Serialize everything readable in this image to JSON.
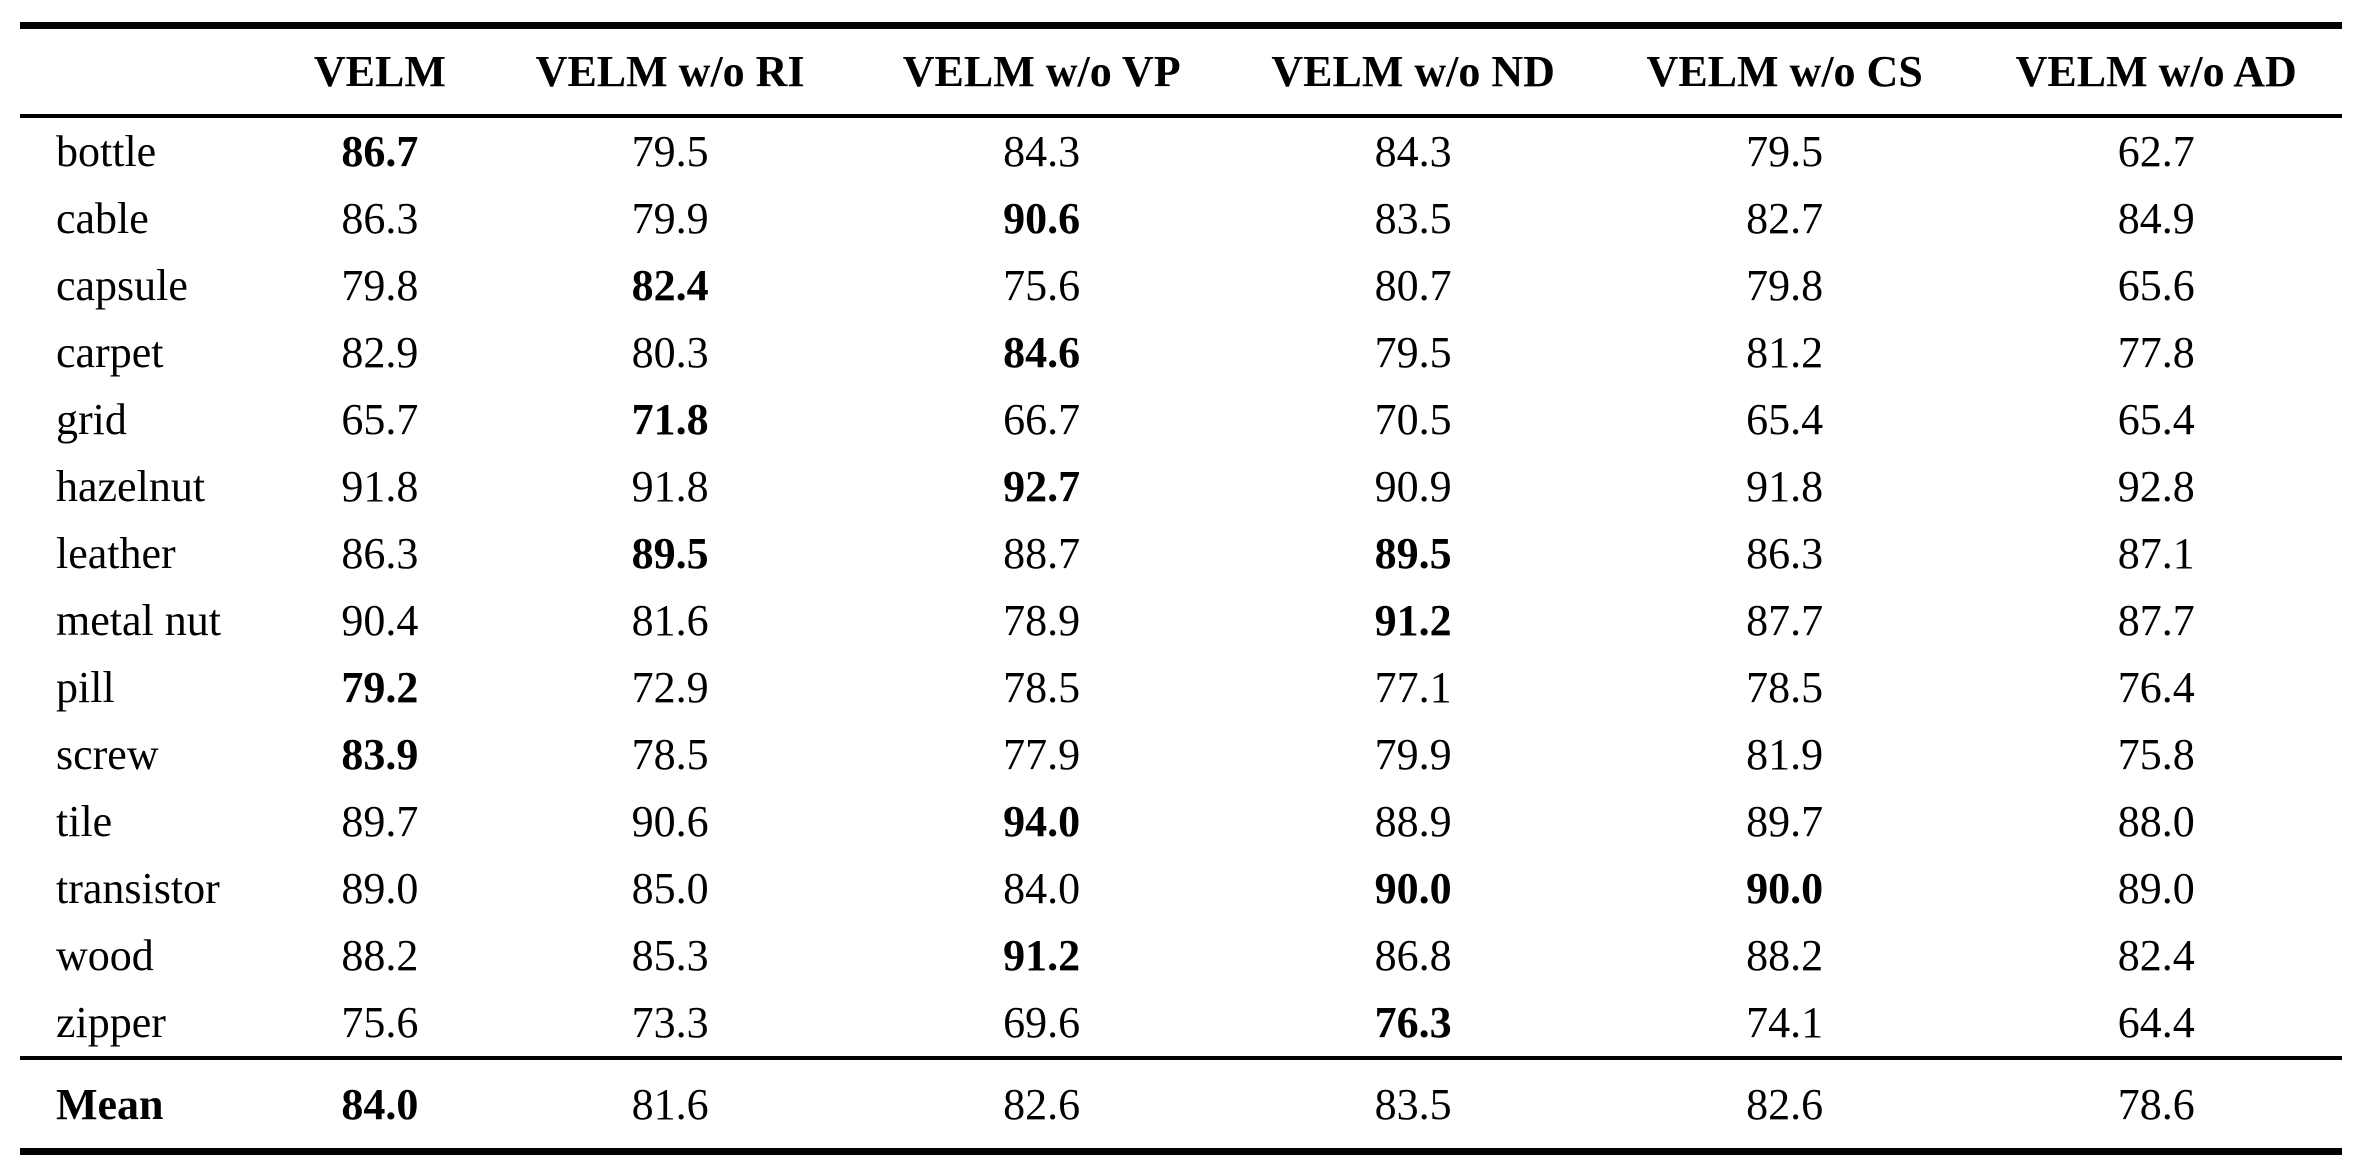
{
  "colors": {
    "text": "#000000",
    "background": "#ffffff",
    "rule": "#000000"
  },
  "chart_data": {
    "type": "table",
    "title": "",
    "row_label_header": "",
    "columns": [
      "VELM",
      "VELM w/o RI",
      "VELM w/o VP",
      "VELM w/o ND",
      "VELM w/o CS",
      "VELM w/o AD"
    ],
    "rows": [
      {
        "label": "bottle",
        "values": [
          "86.7",
          "79.5",
          "84.3",
          "84.3",
          "79.5",
          "62.7"
        ],
        "bold": [
          true,
          false,
          false,
          false,
          false,
          false
        ]
      },
      {
        "label": "cable",
        "values": [
          "86.3",
          "79.9",
          "90.6",
          "83.5",
          "82.7",
          "84.9"
        ],
        "bold": [
          false,
          false,
          true,
          false,
          false,
          false
        ]
      },
      {
        "label": "capsule",
        "values": [
          "79.8",
          "82.4",
          "75.6",
          "80.7",
          "79.8",
          "65.6"
        ],
        "bold": [
          false,
          true,
          false,
          false,
          false,
          false
        ]
      },
      {
        "label": "carpet",
        "values": [
          "82.9",
          "80.3",
          "84.6",
          "79.5",
          "81.2",
          "77.8"
        ],
        "bold": [
          false,
          false,
          true,
          false,
          false,
          false
        ]
      },
      {
        "label": "grid",
        "values": [
          "65.7",
          "71.8",
          "66.7",
          "70.5",
          "65.4",
          "65.4"
        ],
        "bold": [
          false,
          true,
          false,
          false,
          false,
          false
        ]
      },
      {
        "label": "hazelnut",
        "values": [
          "91.8",
          "91.8",
          "92.7",
          "90.9",
          "91.8",
          "92.8"
        ],
        "bold": [
          false,
          false,
          true,
          false,
          false,
          false
        ]
      },
      {
        "label": "leather",
        "values": [
          "86.3",
          "89.5",
          "88.7",
          "89.5",
          "86.3",
          "87.1"
        ],
        "bold": [
          false,
          true,
          false,
          true,
          false,
          false
        ]
      },
      {
        "label": "metal nut",
        "values": [
          "90.4",
          "81.6",
          "78.9",
          "91.2",
          "87.7",
          "87.7"
        ],
        "bold": [
          false,
          false,
          false,
          true,
          false,
          false
        ]
      },
      {
        "label": "pill",
        "values": [
          "79.2",
          "72.9",
          "78.5",
          "77.1",
          "78.5",
          "76.4"
        ],
        "bold": [
          true,
          false,
          false,
          false,
          false,
          false
        ]
      },
      {
        "label": "screw",
        "values": [
          "83.9",
          "78.5",
          "77.9",
          "79.9",
          "81.9",
          "75.8"
        ],
        "bold": [
          true,
          false,
          false,
          false,
          false,
          false
        ]
      },
      {
        "label": "tile",
        "values": [
          "89.7",
          "90.6",
          "94.0",
          "88.9",
          "89.7",
          "88.0"
        ],
        "bold": [
          false,
          false,
          true,
          false,
          false,
          false
        ]
      },
      {
        "label": "transistor",
        "values": [
          "89.0",
          "85.0",
          "84.0",
          "90.0",
          "90.0",
          "89.0"
        ],
        "bold": [
          false,
          false,
          false,
          true,
          true,
          false
        ]
      },
      {
        "label": "wood",
        "values": [
          "88.2",
          "85.3",
          "91.2",
          "86.8",
          "88.2",
          "82.4"
        ],
        "bold": [
          false,
          false,
          true,
          false,
          false,
          false
        ]
      },
      {
        "label": "zipper",
        "values": [
          "75.6",
          "73.3",
          "69.6",
          "76.3",
          "74.1",
          "64.4"
        ],
        "bold": [
          false,
          false,
          false,
          true,
          false,
          false
        ]
      }
    ],
    "footer": {
      "label": "Mean",
      "label_bold": true,
      "values": [
        "84.0",
        "81.6",
        "82.6",
        "83.5",
        "82.6",
        "78.6"
      ],
      "bold": [
        true,
        false,
        false,
        false,
        false,
        false
      ]
    }
  }
}
